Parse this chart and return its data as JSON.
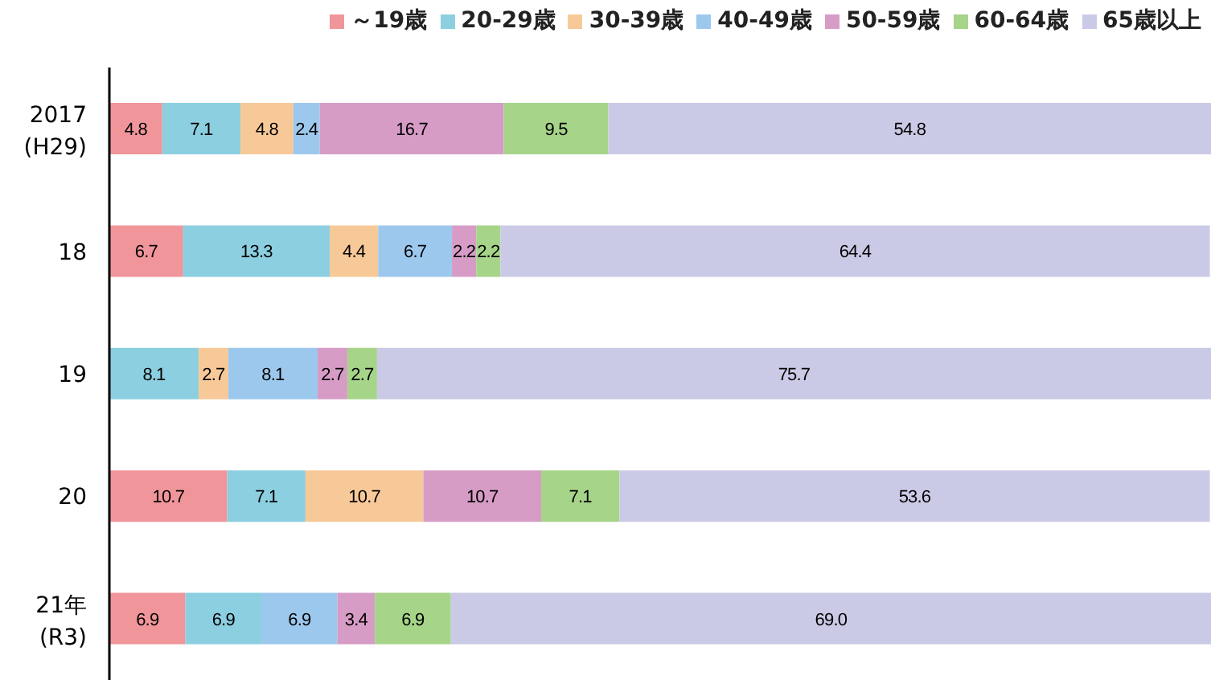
{
  "chart_data": {
    "type": "bar",
    "orientation": "horizontal",
    "stacked": true,
    "legend": "top",
    "tick_labels": "y",
    "xlim": [
      0,
      100
    ],
    "categories": [
      "2017\n(H29)",
      "18",
      "19",
      "20",
      "21年\n(R3)"
    ],
    "series": [
      {
        "name": "～19歳",
        "color": "#f0959a",
        "values": [
          4.8,
          6.7,
          0,
          10.7,
          6.9
        ],
        "value_labels": [
          "4.8",
          "6.7",
          null,
          "10.7",
          "6.9"
        ]
      },
      {
        "name": "20-29歳",
        "color": "#8ccfe0",
        "values": [
          7.1,
          13.3,
          8.1,
          7.1,
          6.9
        ],
        "value_labels": [
          "7.1",
          "13.3",
          "8.1",
          "7.1",
          "6.9"
        ]
      },
      {
        "name": "30-39歳",
        "color": "#f8c998",
        "values": [
          4.8,
          4.4,
          2.7,
          10.7,
          0
        ],
        "value_labels": [
          "4.8",
          "4.4",
          "2.7",
          "10.7",
          null
        ]
      },
      {
        "name": "40-49歳",
        "color": "#9dc8ee",
        "values": [
          2.4,
          6.7,
          8.1,
          0,
          6.9
        ],
        "value_labels": [
          "2.4",
          "6.7",
          "8.1",
          null,
          "6.9"
        ]
      },
      {
        "name": "50-59歳",
        "color": "#d69cc6",
        "values": [
          16.7,
          2.2,
          2.7,
          10.7,
          3.4
        ],
        "value_labels": [
          "16.7",
          "2.2",
          "2.7",
          "10.7",
          "3.4"
        ]
      },
      {
        "name": "60-64歳",
        "color": "#a6d489",
        "values": [
          9.5,
          2.2,
          2.7,
          7.1,
          6.9
        ],
        "value_labels": [
          "9.5",
          "2.2",
          "2.7",
          "7.1",
          "6.9"
        ]
      },
      {
        "name": "65歳以上",
        "color": "#cbcae6",
        "values": [
          54.8,
          64.4,
          75.7,
          53.6,
          69.0
        ],
        "value_labels": [
          "54.8",
          "64.4",
          "75.7",
          "53.6",
          "69.0"
        ]
      }
    ]
  }
}
